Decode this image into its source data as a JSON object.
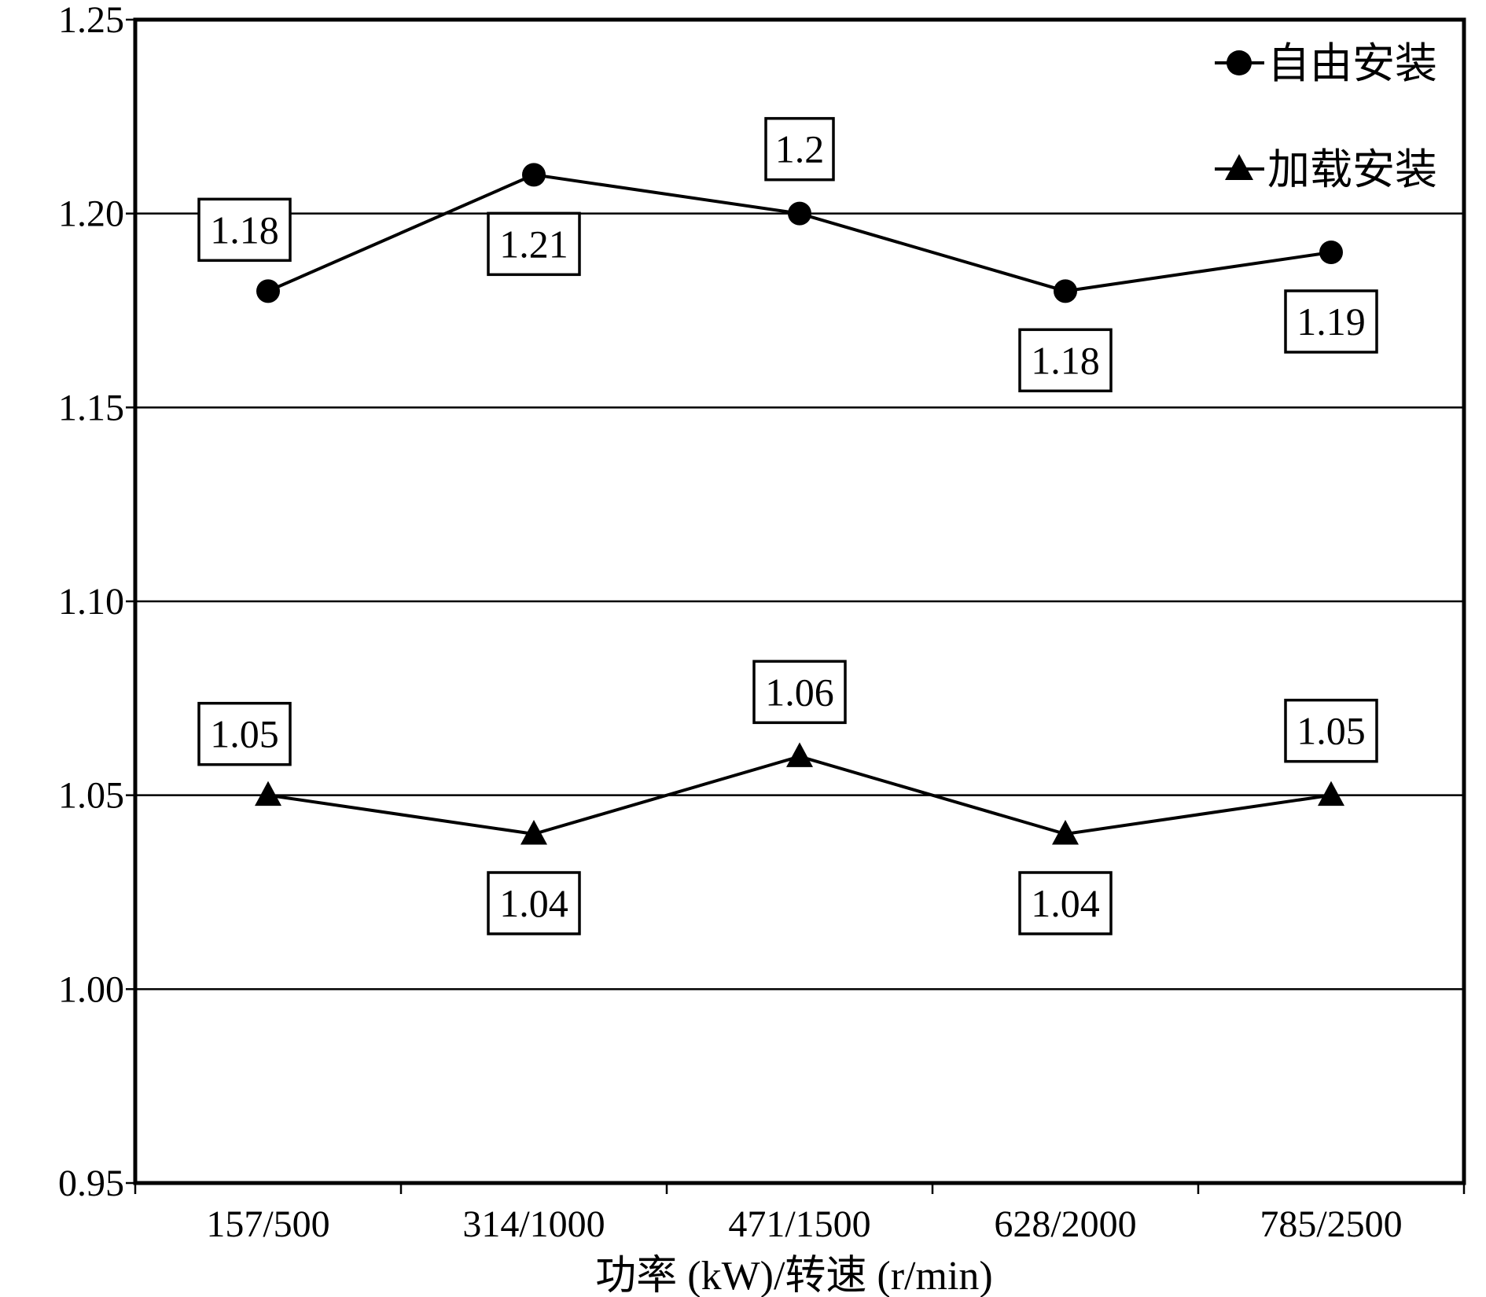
{
  "chart_data": {
    "type": "line",
    "categories": [
      "157/500",
      "314/1000",
      "471/1500",
      "628/2000",
      "785/2500"
    ],
    "series": [
      {
        "name": "自由安装",
        "marker": "circle",
        "values": [
          1.18,
          1.21,
          1.2,
          1.18,
          1.19
        ],
        "labels": [
          "1.18",
          "1.21",
          "1.2",
          "1.18",
          "1.19"
        ],
        "label_positions": [
          "above-left",
          "below",
          "above",
          "below",
          "below"
        ]
      },
      {
        "name": "加载安装",
        "marker": "triangle",
        "values": [
          1.05,
          1.04,
          1.06,
          1.04,
          1.05
        ],
        "labels": [
          "1.05",
          "1.04",
          "1.06",
          "1.04",
          "1.05"
        ],
        "label_positions": [
          "above-left",
          "below",
          "above",
          "below",
          "above"
        ]
      }
    ],
    "xlabel": "功率 (kW)/转速 (r/min)",
    "ylabel": "",
    "ylim": [
      0.95,
      1.25
    ],
    "yticks": [
      "0.95",
      "1.00",
      "1.05",
      "1.10",
      "1.15",
      "1.20",
      "1.25"
    ],
    "grid": "horizontal",
    "legend_position": "top-right",
    "line_color": "#000000"
  }
}
